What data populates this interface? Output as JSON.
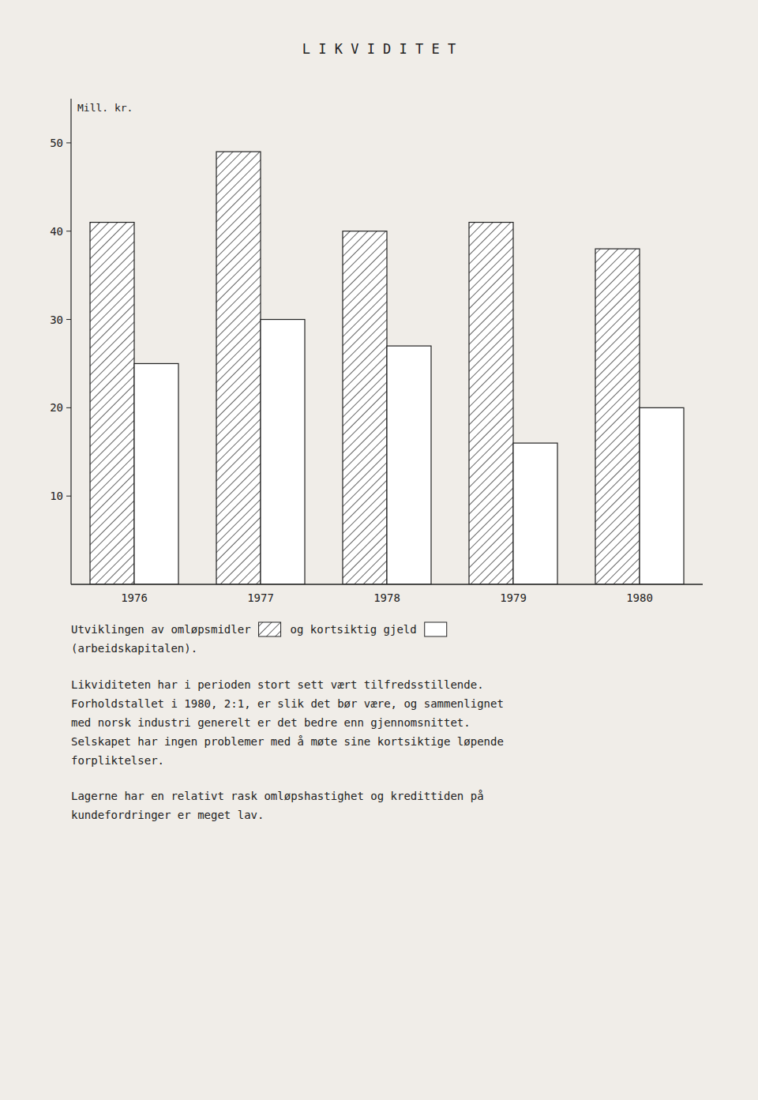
{
  "chart_data": {
    "type": "bar",
    "title": "L I K V I D I T E T",
    "ylabel": "Mill. kr.",
    "categories": [
      "1976",
      "1977",
      "1978",
      "1979",
      "1980"
    ],
    "series": [
      {
        "name": "Utviklingen av omløpsmidler",
        "color": "#ffffff",
        "values": [
          41,
          49,
          40,
          41,
          38
        ]
      },
      {
        "name": "og kortsiktig gjeld",
        "color": "#ffffff",
        "values": [
          25,
          30,
          27,
          16,
          20
        ]
      }
    ],
    "ylim": [
      0,
      55
    ],
    "yticks": [
      10,
      20,
      30,
      40,
      50
    ],
    "grid": false,
    "legend": "bottom",
    "annotations": [
      [
        "(arbeidskapitalen)."
      ],
      [
        "Likviditeten har i perioden stort sett vært tilfredsstillende.",
        "Forholdstallet i 1980, 2:1, er slik det bør være, og sammenlignet",
        "med norsk industri generelt er det bedre enn gjennomsnittet.",
        "Selskapet har ingen problemer med å møte sine kortsiktige løpende",
        "forpliktelser."
      ],
      [
        "Lagerne har en relativt rask omløpshastighet og kredittiden på",
        "kundefordringer er meget lav."
      ]
    ]
  }
}
